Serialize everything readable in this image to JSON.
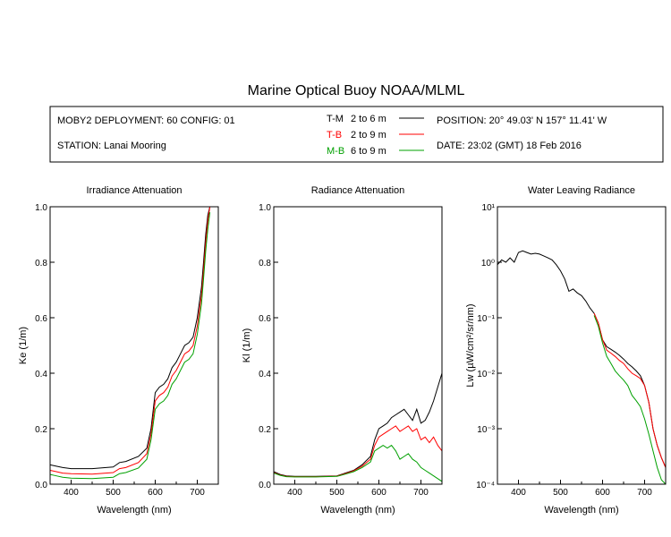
{
  "title": "Marine Optical Buoy NOAA/MLML",
  "info": {
    "deployment": "MOBY2 DEPLOYMENT: 60 CONFIG: 01",
    "station": "STATION: Lanai Mooring",
    "position": "POSITION: 20° 49.03' N   157° 11.41' W",
    "date": "DATE: 23:02 (GMT) 18 Feb 2016"
  },
  "legend": [
    {
      "code": "T-M",
      "range": "2 to 6  m",
      "color": "#000000"
    },
    {
      "code": "T-B",
      "range": "2 to 9  m",
      "color": "#ff0000"
    },
    {
      "code": "M-B",
      "range": "6 to 9  m",
      "color": "#00a000"
    }
  ],
  "chart_data": [
    {
      "type": "line",
      "title": "Irradiance Attenuation",
      "xlabel": "Wavelength (nm)",
      "ylabel": "Ke  (1/m)",
      "xlim": [
        350,
        750
      ],
      "ylim": [
        0,
        1.0
      ],
      "xticks": [
        "400",
        "500",
        "600",
        "700"
      ],
      "xtick_values": [
        400,
        500,
        600,
        700
      ],
      "yticks": [
        "0.0",
        "0.2",
        "0.4",
        "0.6",
        "0.8",
        "1.0"
      ],
      "ytick_values": [
        0,
        0.2,
        0.4,
        0.6,
        0.8,
        1.0
      ],
      "series": [
        {
          "name": "T-M",
          "color": "#000000",
          "x": [
            350,
            365,
            380,
            400,
            450,
            500,
            515,
            530,
            560,
            580,
            590,
            600,
            610,
            620,
            630,
            640,
            650,
            660,
            670,
            680,
            690,
            700,
            710,
            715,
            720,
            725,
            730
          ],
          "y": [
            0.07,
            0.065,
            0.06,
            0.056,
            0.056,
            0.062,
            0.078,
            0.082,
            0.1,
            0.13,
            0.2,
            0.33,
            0.35,
            0.36,
            0.38,
            0.42,
            0.44,
            0.47,
            0.5,
            0.51,
            0.53,
            0.6,
            0.71,
            0.8,
            0.9,
            0.97,
            1.0
          ]
        },
        {
          "name": "T-B",
          "color": "#ff0000",
          "x": [
            350,
            365,
            380,
            400,
            450,
            500,
            515,
            530,
            560,
            580,
            590,
            600,
            610,
            620,
            630,
            640,
            650,
            660,
            670,
            680,
            690,
            700,
            710,
            715,
            720,
            725,
            730
          ],
          "y": [
            0.05,
            0.045,
            0.04,
            0.038,
            0.036,
            0.042,
            0.056,
            0.06,
            0.078,
            0.11,
            0.18,
            0.3,
            0.32,
            0.33,
            0.35,
            0.39,
            0.41,
            0.44,
            0.47,
            0.48,
            0.5,
            0.57,
            0.68,
            0.77,
            0.87,
            0.95,
            1.0
          ]
        },
        {
          "name": "M-B",
          "color": "#00a000",
          "x": [
            350,
            365,
            380,
            400,
            450,
            500,
            515,
            530,
            560,
            580,
            590,
            600,
            610,
            620,
            630,
            640,
            650,
            660,
            670,
            680,
            690,
            700,
            710,
            715,
            720,
            725,
            730
          ],
          "y": [
            0.035,
            0.03,
            0.025,
            0.022,
            0.02,
            0.025,
            0.038,
            0.042,
            0.058,
            0.09,
            0.16,
            0.27,
            0.29,
            0.3,
            0.32,
            0.36,
            0.38,
            0.41,
            0.44,
            0.45,
            0.47,
            0.54,
            0.65,
            0.74,
            0.84,
            0.92,
            0.98
          ]
        }
      ]
    },
    {
      "type": "line",
      "title": "Radiance Attenuation",
      "xlabel": "Wavelength (nm)",
      "ylabel": "Kl  (1/m)",
      "xlim": [
        350,
        750
      ],
      "ylim": [
        0,
        1.0
      ],
      "xticks": [
        "400",
        "500",
        "600",
        "700"
      ],
      "xtick_values": [
        400,
        500,
        600,
        700
      ],
      "yticks": [
        "0.0",
        "0.2",
        "0.4",
        "0.6",
        "0.8",
        "1.0"
      ],
      "ytick_values": [
        0,
        0.2,
        0.4,
        0.6,
        0.8,
        1.0
      ],
      "series": [
        {
          "name": "T-M",
          "color": "#000000",
          "x": [
            350,
            365,
            380,
            400,
            450,
            500,
            520,
            540,
            560,
            580,
            590,
            600,
            610,
            620,
            630,
            640,
            650,
            660,
            670,
            680,
            690,
            700,
            710,
            720,
            730,
            740,
            750
          ],
          "y": [
            0.045,
            0.035,
            0.03,
            0.028,
            0.028,
            0.03,
            0.04,
            0.05,
            0.07,
            0.1,
            0.16,
            0.2,
            0.21,
            0.22,
            0.24,
            0.25,
            0.26,
            0.27,
            0.25,
            0.23,
            0.27,
            0.22,
            0.23,
            0.26,
            0.3,
            0.35,
            0.4
          ]
        },
        {
          "name": "T-B",
          "color": "#ff0000",
          "x": [
            350,
            365,
            380,
            400,
            450,
            500,
            520,
            540,
            560,
            580,
            590,
            600,
            610,
            620,
            630,
            640,
            650,
            660,
            670,
            680,
            690,
            700,
            710,
            720,
            730,
            740,
            750
          ],
          "y": [
            0.042,
            0.033,
            0.028,
            0.027,
            0.027,
            0.029,
            0.038,
            0.048,
            0.065,
            0.09,
            0.14,
            0.17,
            0.18,
            0.19,
            0.2,
            0.21,
            0.19,
            0.2,
            0.21,
            0.19,
            0.2,
            0.16,
            0.17,
            0.15,
            0.17,
            0.14,
            0.12
          ]
        },
        {
          "name": "M-B",
          "color": "#00a000",
          "x": [
            350,
            365,
            380,
            400,
            450,
            500,
            520,
            540,
            560,
            580,
            590,
            600,
            610,
            620,
            630,
            640,
            650,
            660,
            670,
            680,
            690,
            700,
            710,
            720,
            730,
            740,
            750
          ],
          "y": [
            0.04,
            0.032,
            0.027,
            0.026,
            0.026,
            0.028,
            0.036,
            0.045,
            0.06,
            0.08,
            0.12,
            0.13,
            0.14,
            0.13,
            0.14,
            0.12,
            0.09,
            0.1,
            0.11,
            0.09,
            0.08,
            0.06,
            0.05,
            0.04,
            0.03,
            0.02,
            0.01
          ]
        }
      ]
    },
    {
      "type": "line",
      "title": "Water Leaving Radiance",
      "xlabel": "Wavelength (nm)",
      "ylabel": "Lw  (µW/cm²/sr/nm)",
      "yscale": "log",
      "xlim": [
        350,
        750
      ],
      "ylim": [
        0.0001,
        10
      ],
      "xticks": [
        "400",
        "500",
        "600",
        "700"
      ],
      "xtick_values": [
        400,
        500,
        600,
        700
      ],
      "yticks": [
        "10¹",
        "10⁰",
        "10⁻¹",
        "10⁻²",
        "10⁻³",
        "10⁻⁴"
      ],
      "ytick_values": [
        10,
        1,
        0.1,
        0.01,
        0.001,
        0.0001
      ],
      "series": [
        {
          "name": "T-M",
          "color": "#000000",
          "x": [
            350,
            360,
            370,
            380,
            390,
            400,
            410,
            420,
            430,
            440,
            450,
            460,
            470,
            480,
            490,
            500,
            510,
            520,
            530,
            540,
            550,
            560,
            570,
            580,
            590,
            600,
            610,
            620,
            630,
            640,
            650,
            660,
            670,
            680,
            690,
            700,
            710,
            720,
            730,
            740,
            750
          ],
          "y": [
            0.9,
            1.1,
            1.0,
            1.2,
            1.0,
            1.5,
            1.6,
            1.5,
            1.4,
            1.45,
            1.4,
            1.3,
            1.2,
            1.1,
            0.9,
            0.7,
            0.5,
            0.3,
            0.33,
            0.28,
            0.25,
            0.2,
            0.15,
            0.12,
            0.08,
            0.04,
            0.03,
            0.027,
            0.024,
            0.021,
            0.018,
            0.015,
            0.013,
            0.011,
            0.009,
            0.006,
            0.003,
            0.001,
            0.0005,
            0.0003,
            0.0002
          ]
        },
        {
          "name": "T-B",
          "color": "#ff0000",
          "x": [
            580,
            590,
            600,
            610,
            620,
            630,
            640,
            650,
            660,
            670,
            680,
            690,
            700,
            710,
            720,
            730,
            740,
            750
          ],
          "y": [
            0.12,
            0.08,
            0.04,
            0.026,
            0.023,
            0.02,
            0.017,
            0.015,
            0.012,
            0.01,
            0.009,
            0.008,
            0.006,
            0.003,
            0.001,
            0.0005,
            0.0003,
            0.0002
          ]
        },
        {
          "name": "M-B",
          "color": "#00a000",
          "x": [
            580,
            590,
            600,
            610,
            620,
            630,
            640,
            650,
            660,
            670,
            680,
            690,
            700,
            710,
            720,
            730,
            740,
            750
          ],
          "y": [
            0.11,
            0.07,
            0.035,
            0.02,
            0.015,
            0.011,
            0.009,
            0.0075,
            0.006,
            0.004,
            0.0032,
            0.0025,
            0.0015,
            0.0008,
            0.0004,
            0.0002,
            0.00012,
            0.0001
          ]
        }
      ]
    }
  ]
}
